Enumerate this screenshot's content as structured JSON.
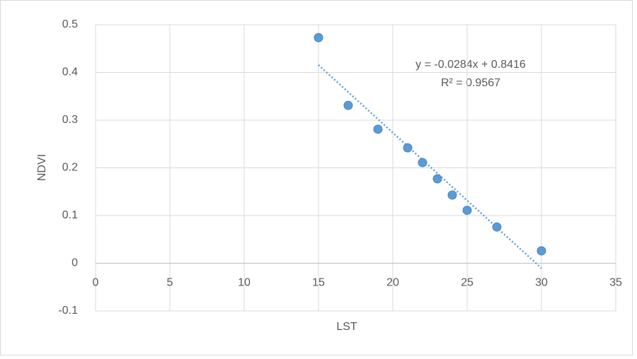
{
  "chart_data": {
    "type": "scatter",
    "x_label": "LST",
    "y_label": "NDVI",
    "series": [
      {
        "color": "#5b9bd5",
        "x": [
          15,
          17,
          19,
          21,
          22,
          23,
          24,
          25,
          27,
          30
        ],
        "values": [
          0.473,
          0.331,
          0.281,
          0.242,
          0.211,
          0.177,
          0.143,
          0.111,
          0.076,
          0.026
        ]
      }
    ],
    "trendline": {
      "slope": -0.0284,
      "intercept": 0.8416,
      "equation": "y = -0.0284x + 0.8416",
      "r_squared": "R² = 0.9567"
    },
    "xlim": [
      0,
      35
    ],
    "xticks": [
      0,
      5,
      10,
      15,
      20,
      25,
      30,
      35
    ],
    "ylim": [
      -0.1,
      0.5
    ],
    "yticks": [
      -0.1,
      0,
      0.1,
      0.2,
      0.3,
      0.4,
      0.5
    ],
    "grid": true
  }
}
